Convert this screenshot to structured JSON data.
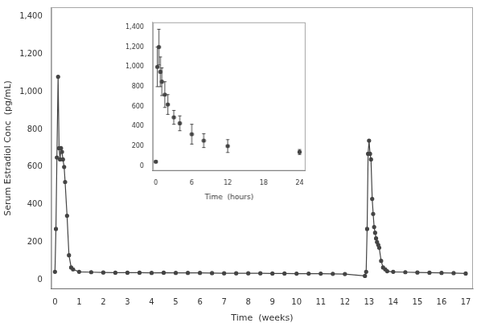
{
  "chart_data": [
    {
      "type": "line",
      "xlabel": "Time  (weeks)",
      "ylabel": "Serum Estradiol Conc  (pg/mL)",
      "x": [
        0.0,
        0.04,
        0.08,
        0.13,
        0.17,
        0.21,
        0.25,
        0.29,
        0.33,
        0.38,
        0.42,
        0.5,
        0.58,
        0.67,
        0.75,
        1.0,
        1.5,
        2.0,
        2.5,
        3.0,
        3.5,
        4.0,
        4.5,
        5.0,
        5.5,
        6.0,
        6.5,
        7.0,
        7.5,
        8.0,
        8.5,
        9.0,
        9.5,
        10.0,
        10.5,
        11.0,
        11.5,
        12.0,
        12.83,
        12.88,
        12.92,
        12.96,
        13.0,
        13.04,
        13.08,
        13.13,
        13.17,
        13.21,
        13.25,
        13.29,
        13.33,
        13.38,
        13.42,
        13.5,
        13.58,
        13.67,
        13.75,
        14.0,
        14.5,
        15.0,
        15.5,
        16.0,
        16.5,
        17.0
      ],
      "values": [
        42,
        270,
        650,
        1080,
        700,
        640,
        700,
        680,
        640,
        600,
        520,
        340,
        130,
        65,
        55,
        42,
        40,
        38,
        37,
        37,
        37,
        36,
        37,
        36,
        36,
        36,
        35,
        34,
        34,
        34,
        34,
        33,
        33,
        32,
        32,
        32,
        31,
        30,
        20,
        42,
        270,
        670,
        740,
        670,
        640,
        430,
        350,
        280,
        250,
        220,
        200,
        185,
        170,
        100,
        65,
        55,
        45,
        42,
        40,
        38,
        37,
        36,
        35,
        33
      ],
      "color": "#444444",
      "marker": "dot",
      "xlim": [
        -0.15,
        17.3
      ],
      "ylim": [
        -50,
        1450
      ],
      "xticks": [
        0,
        1,
        2,
        3,
        4,
        5,
        6,
        7,
        8,
        9,
        10,
        11,
        12,
        13,
        14,
        15,
        16,
        17
      ],
      "yticks": [
        0,
        200,
        400,
        600,
        800,
        1000,
        1200,
        1400
      ],
      "grid": false
    },
    {
      "type": "scatter",
      "xlabel": "Time  (hours)",
      "x": [
        0.0,
        0.25,
        0.5,
        0.75,
        1.0,
        1.5,
        2.0,
        3.0,
        4.0,
        6.0,
        8.0,
        12.0,
        24.0
      ],
      "values": [
        42,
        1000,
        1200,
        950,
        850,
        720,
        620,
        490,
        430,
        320,
        255,
        200,
        140
      ],
      "errors": [
        10,
        200,
        180,
        150,
        140,
        130,
        100,
        70,
        75,
        100,
        70,
        65,
        25
      ],
      "color": "#444444",
      "marker": "dot",
      "xlim": [
        -0.5,
        25
      ],
      "ylim": [
        -50,
        1450
      ],
      "xticks": [
        0,
        6,
        12,
        18,
        24
      ],
      "yticks": [
        0,
        200,
        400,
        600,
        800,
        1000,
        1200,
        1400
      ],
      "grid": false
    }
  ]
}
